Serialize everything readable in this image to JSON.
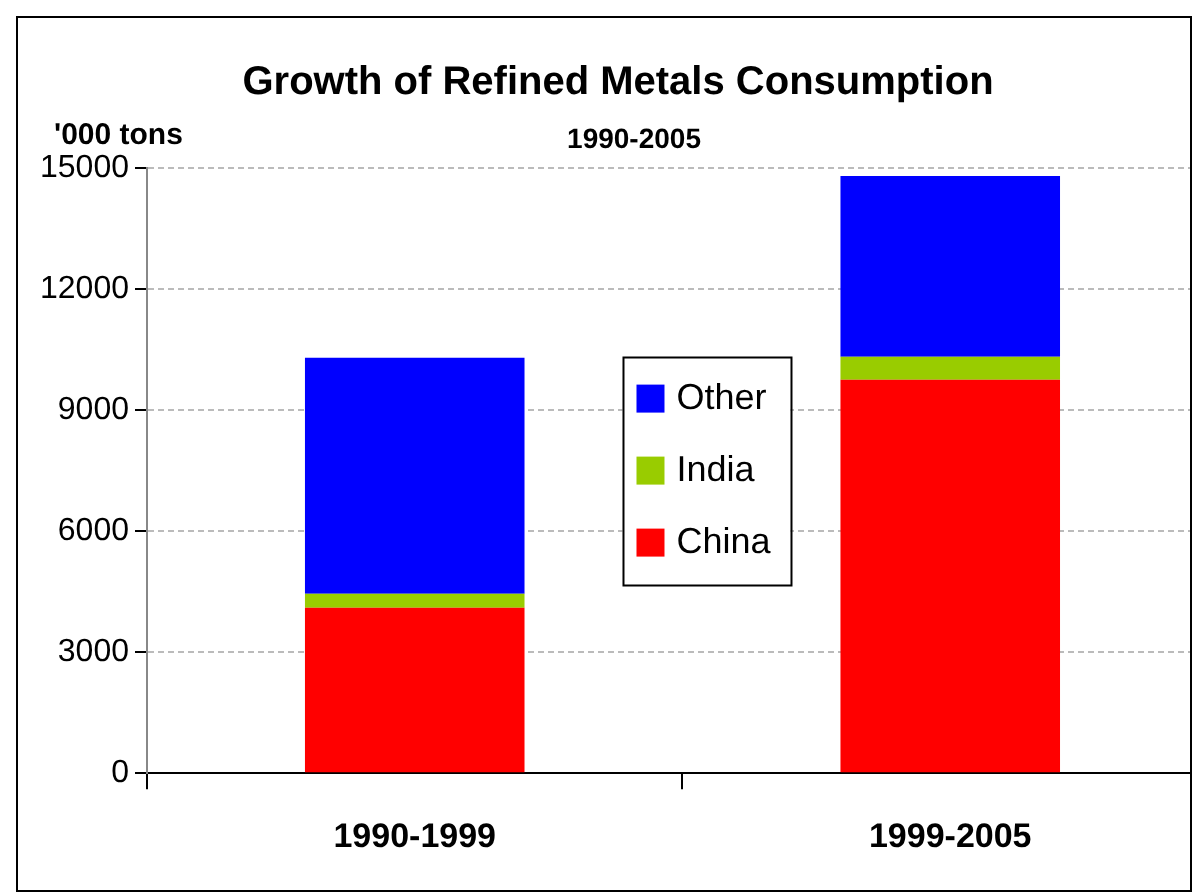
{
  "chart_data": {
    "type": "bar",
    "title": "Growth of Refined Metals Consumption",
    "subtitle": "1990-2005",
    "ylabel": "'000 tons",
    "categories": [
      "1990-1999",
      "1999-2005"
    ],
    "stacked": true,
    "series": [
      {
        "name": "China",
        "color": "#ff0000",
        "values": [
          4100,
          9750
        ]
      },
      {
        "name": "India",
        "color": "#99cc00",
        "values": [
          350,
          570
        ]
      },
      {
        "name": "Other",
        "color": "#0000ff",
        "values": [
          5850,
          4480
        ]
      }
    ],
    "ylim": [
      0,
      15000
    ],
    "yticks": [
      0,
      3000,
      6000,
      9000,
      12000,
      15000
    ],
    "grid": "y",
    "legend": "center"
  }
}
